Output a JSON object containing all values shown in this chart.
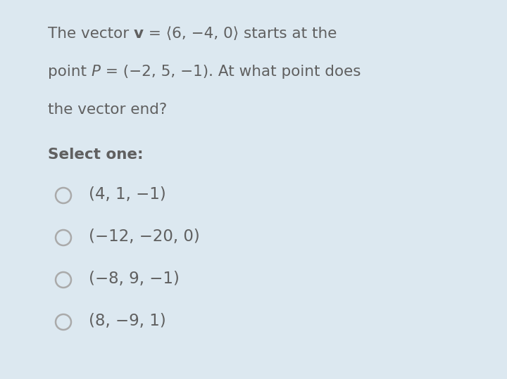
{
  "background_color": "#dce8f0",
  "text_color": "#606060",
  "fig_width": 7.2,
  "fig_height": 5.39,
  "dpi": 100,
  "font_size_question": 15.5,
  "font_size_options": 16.5,
  "font_size_select": 15.5,
  "circle_color": "#aaaaaa",
  "circle_linewidth": 1.8,
  "options": [
    "(4, 1, −1)",
    "(−12, −20, 0)",
    "(−8, 9, −1)",
    "(8, −9, 1)"
  ]
}
